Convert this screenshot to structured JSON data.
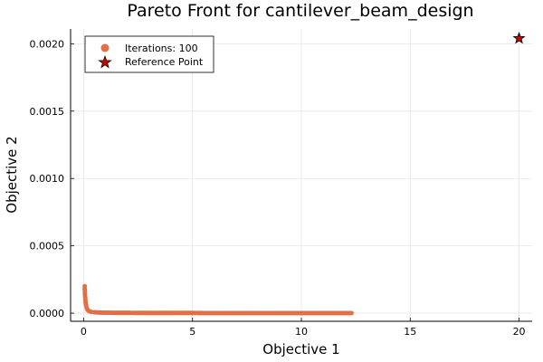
{
  "chart_data": {
    "type": "scatter",
    "title": "Pareto Front for cantilever_beam_design",
    "xlabel": "Objective 1",
    "ylabel": "Objective 2",
    "xlim": [
      -0.6,
      20.6
    ],
    "ylim": [
      -6e-05,
      0.00211
    ],
    "x_ticks": [
      0,
      5,
      10,
      15,
      20
    ],
    "x_tick_labels": [
      "0",
      "5",
      "10",
      "15",
      "20"
    ],
    "y_ticks": [
      0.0,
      0.0005,
      0.001,
      0.0015,
      0.002
    ],
    "y_tick_labels": [
      "0.0000",
      "0.0005",
      "0.0010",
      "0.0015",
      "0.0020"
    ],
    "grid": true,
    "legend_position": "top-left",
    "series": [
      {
        "name": "Iterations: 100",
        "marker": "circle",
        "color": "#e26f46",
        "points": [
          [
            0.05,
            0.0002
          ],
          [
            0.05,
            0.00018
          ],
          [
            0.06,
            0.00016
          ],
          [
            0.06,
            0.00014
          ],
          [
            0.07,
            0.00012
          ],
          [
            0.08,
            0.0001
          ],
          [
            0.09,
            8e-05
          ],
          [
            0.11,
            6e-05
          ],
          [
            0.14,
            4e-05
          ],
          [
            0.18,
            2.5e-05
          ],
          [
            0.25,
            1.5e-05
          ],
          [
            0.35,
            1e-05
          ],
          [
            0.5,
            7e-06
          ],
          [
            0.7,
            5e-06
          ],
          [
            1.0,
            4e-06
          ],
          [
            1.5,
            3e-06
          ],
          [
            2.0,
            3e-06
          ],
          [
            2.5,
            2e-06
          ],
          [
            3.0,
            2e-06
          ],
          [
            3.5,
            2e-06
          ],
          [
            4.0,
            2e-06
          ],
          [
            4.5,
            2e-06
          ],
          [
            5.0,
            2e-06
          ],
          [
            5.5,
            1e-06
          ],
          [
            6.0,
            1e-06
          ],
          [
            6.5,
            1e-06
          ],
          [
            7.0,
            1e-06
          ],
          [
            7.5,
            1e-06
          ],
          [
            8.0,
            1e-06
          ],
          [
            8.5,
            1e-06
          ],
          [
            9.0,
            1e-06
          ],
          [
            9.5,
            1e-06
          ],
          [
            10.0,
            1e-06
          ],
          [
            10.5,
            1e-06
          ],
          [
            11.0,
            1e-06
          ],
          [
            11.5,
            1e-06
          ],
          [
            12.0,
            1e-06
          ],
          [
            12.3,
            1e-06
          ]
        ]
      },
      {
        "name": "Reference Point",
        "marker": "star",
        "color": "#cc0000",
        "points": [
          [
            20.0,
            0.00204
          ]
        ]
      }
    ]
  }
}
